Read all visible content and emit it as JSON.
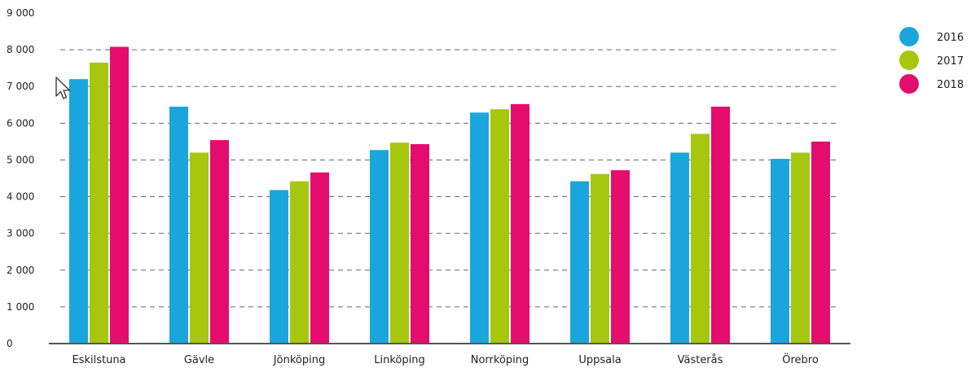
{
  "chart_data": {
    "type": "bar",
    "title": "",
    "xlabel": "",
    "ylabel": "",
    "ylim": [
      0,
      9000
    ],
    "yticks": [
      0,
      1000,
      2000,
      3000,
      4000,
      5000,
      6000,
      7000,
      8000,
      9000
    ],
    "ytick_labels": [
      "0",
      "1 000",
      "2 000",
      "3 000",
      "4 000",
      "5 000",
      "6 000",
      "7 000",
      "8 000",
      "9 000"
    ],
    "grid": "horizontal dashed",
    "legend_position": "top-right",
    "categories": [
      "Eskilstuna",
      "Gävle",
      "Jönköping",
      "Linköping",
      "Norrköping",
      "Uppsala",
      "Västerås",
      "Örebro"
    ],
    "series": [
      {
        "name": "2016",
        "color": "#1aa6dc",
        "values": [
          7200,
          6450,
          4180,
          5270,
          6290,
          4420,
          5200,
          5030
        ]
      },
      {
        "name": "2017",
        "color": "#a6c70e",
        "values": [
          7650,
          5200,
          4420,
          5470,
          6380,
          4620,
          5710,
          5200
        ]
      },
      {
        "name": "2018",
        "color": "#e40c6c",
        "values": [
          8080,
          5540,
          4660,
          5430,
          6520,
          4720,
          6450,
          5500
        ]
      }
    ]
  }
}
